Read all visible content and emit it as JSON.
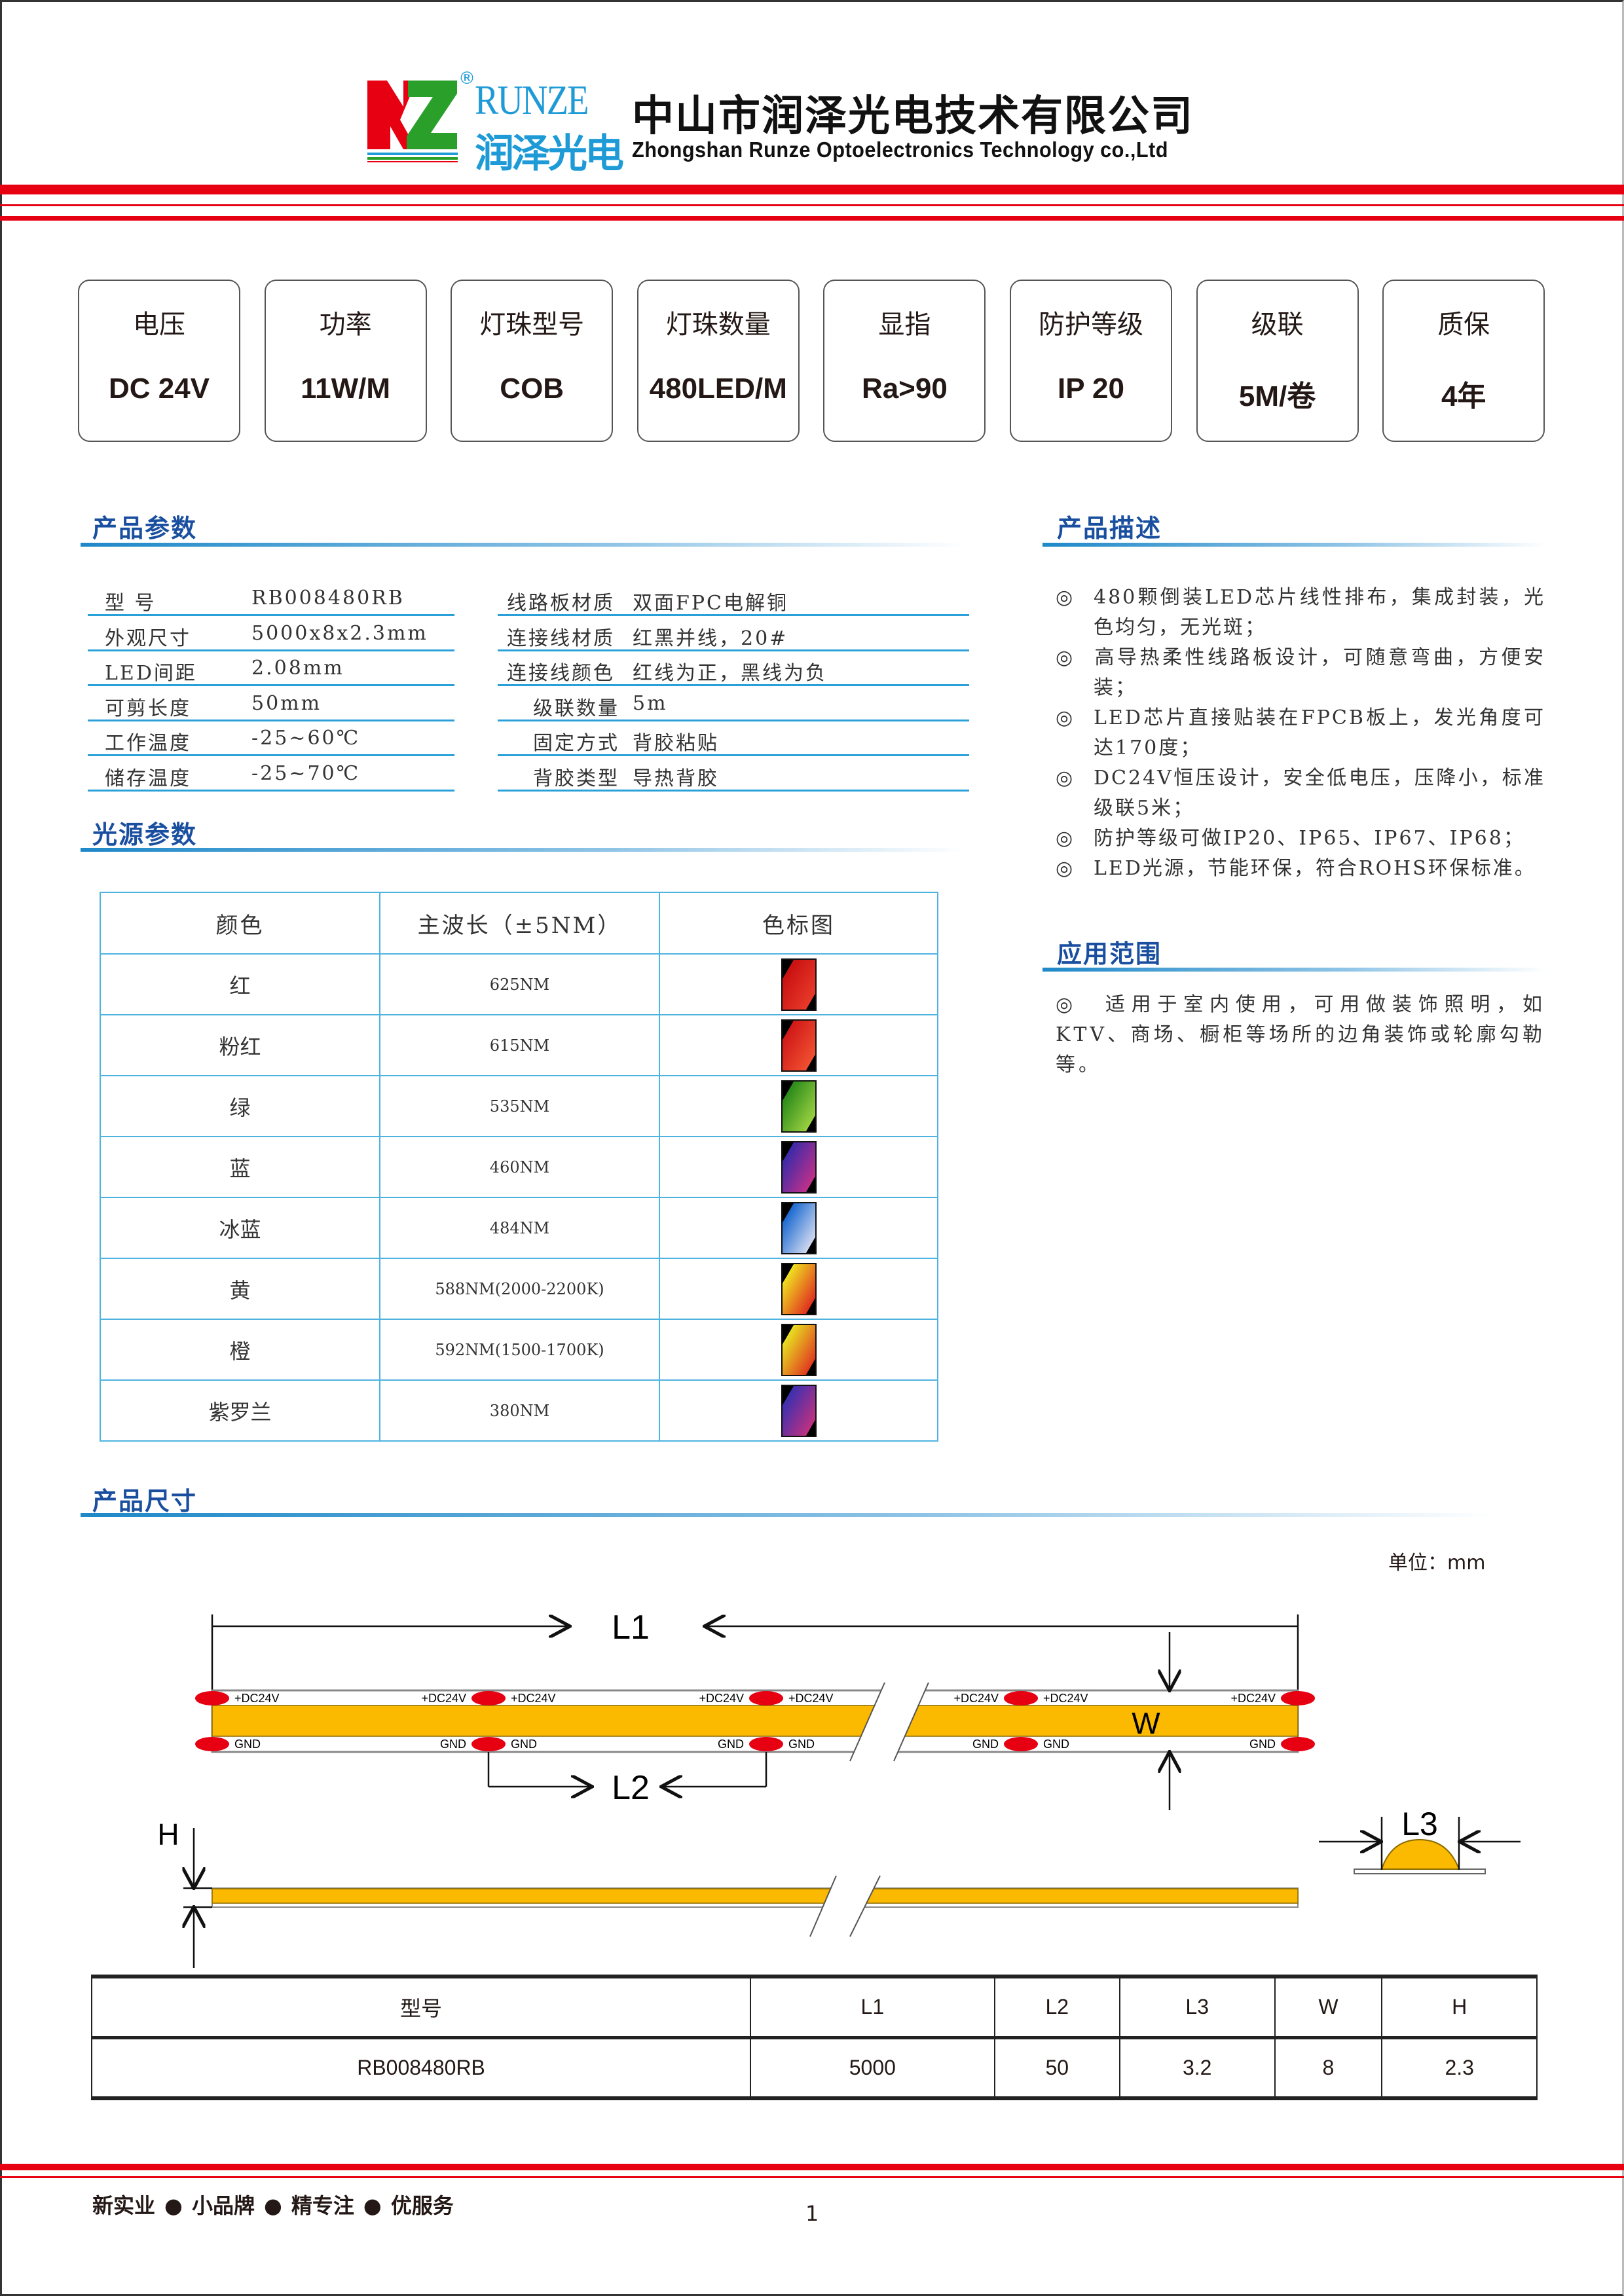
{
  "header": {
    "brand_en": "RUNZE",
    "brand_cn": "润泽光电",
    "registered_mark": "®",
    "logo_letters": "RZ",
    "company_cn": "中山市润泽光电技术有限公司",
    "company_en": "Zhongshan Runze Optoelectronics Technology co.,Ltd"
  },
  "specs": [
    {
      "label": "电压",
      "value": "DC 24V"
    },
    {
      "label": "功率",
      "value": "11W/M"
    },
    {
      "label": "灯珠型号",
      "value": "COB"
    },
    {
      "label": "灯珠数量",
      "value": "480LED/M"
    },
    {
      "label": "显指",
      "value": "Ra>90"
    },
    {
      "label": "防护等级",
      "value": "IP 20"
    },
    {
      "label": "级联",
      "value": "5M/卷"
    },
    {
      "label": "质保",
      "value": "4年"
    }
  ],
  "params": {
    "title": "产品参数",
    "left": [
      {
        "label": "型 号",
        "value": "RB008480RB"
      },
      {
        "label": "外观尺寸",
        "value": "5000x8x2.3mm"
      },
      {
        "label": "LED间距",
        "value": "2.08mm"
      },
      {
        "label": "可剪长度",
        "value": "50mm"
      },
      {
        "label": "工作温度",
        "value": "-25~60℃"
      },
      {
        "label": "储存温度",
        "value": "-25~70℃"
      }
    ],
    "right": [
      {
        "label": "线路板材质",
        "value": "双面FPC电解铜"
      },
      {
        "label": "连接线材质",
        "value": "红黑并线，20#"
      },
      {
        "label": "连接线颜色",
        "value": "红线为正，黑线为负"
      },
      {
        "label": "级联数量",
        "value": "5m"
      },
      {
        "label": "固定方式",
        "value": "背胶粘贴"
      },
      {
        "label": "背胶类型",
        "value": "导热背胶"
      }
    ]
  },
  "description": {
    "title": "产品描述",
    "bullet": "◎",
    "items": [
      "480颗倒装LED芯片线性排布，集成封装，光色均匀，无光斑；",
      "高导热柔性线路板设计，可随意弯曲，方便安装；",
      "LED芯片直接贴装在FPCB板上，发光角度可达170度；",
      "DC24V恒压设计，安全低电压，压降小，标准级联5米；",
      "防护等级可做IP20、IP65、IP67、IP68；",
      "LED光源，节能环保，符合ROHS环保标准。"
    ]
  },
  "application": {
    "title": "应用范围",
    "text": "◎　适用于室内使用，可用做装饰照明，如KTV、商场、橱柜等场所的边角装饰或轮廓勾勒等。"
  },
  "light_source": {
    "title": "光源参数",
    "headers": [
      "颜色",
      "主波长（±5NM）",
      "色标图"
    ],
    "rows": [
      {
        "color": "红",
        "wavelength": "625NM",
        "swatch": [
          "#c81010",
          "#e83a2a"
        ]
      },
      {
        "color": "粉红",
        "wavelength": "615NM",
        "swatch": [
          "#d01818",
          "#f05030"
        ]
      },
      {
        "color": "绿",
        "wavelength": "535NM",
        "swatch": [
          "#2a8a1a",
          "#9ad040"
        ]
      },
      {
        "color": "蓝",
        "wavelength": "460NM",
        "swatch": [
          "#3a2aa8",
          "#c0308a"
        ]
      },
      {
        "color": "冰蓝",
        "wavelength": "484NM",
        "swatch": [
          "#1a6ad0",
          "#d0d8f0"
        ]
      },
      {
        "color": "黄",
        "wavelength": "588NM(2000-2200K)",
        "swatch": [
          "#f0e020",
          "#e03020"
        ]
      },
      {
        "color": "橙",
        "wavelength": "592NM(1500-1700K)",
        "swatch": [
          "#e8e020",
          "#e03a20"
        ]
      },
      {
        "color": "紫罗兰",
        "wavelength": "380NM",
        "swatch": [
          "#3a30b0",
          "#c03080"
        ]
      }
    ]
  },
  "dimensions": {
    "title": "产品尺寸",
    "unit": "单位：mm",
    "labels": {
      "l1": "L1",
      "l2": "L2",
      "l3": "L3",
      "w": "W",
      "h": "H"
    },
    "pad_top": "+DC24V",
    "pad_bottom": "GND",
    "table": {
      "headers": [
        "型号",
        "L1",
        "L2",
        "L3",
        "W",
        "H"
      ],
      "row": [
        "RB008480RB",
        "5000",
        "50",
        "3.2",
        "8",
        "2.3"
      ]
    }
  },
  "footer": {
    "slogan": [
      "新实业",
      "小品牌",
      "精专注",
      "优服务"
    ],
    "separator": "●",
    "page": "1"
  },
  "colors": {
    "red": "#e60012",
    "blue": "#1a4fa0",
    "strip": "#fbb900",
    "led": "#e60012"
  }
}
